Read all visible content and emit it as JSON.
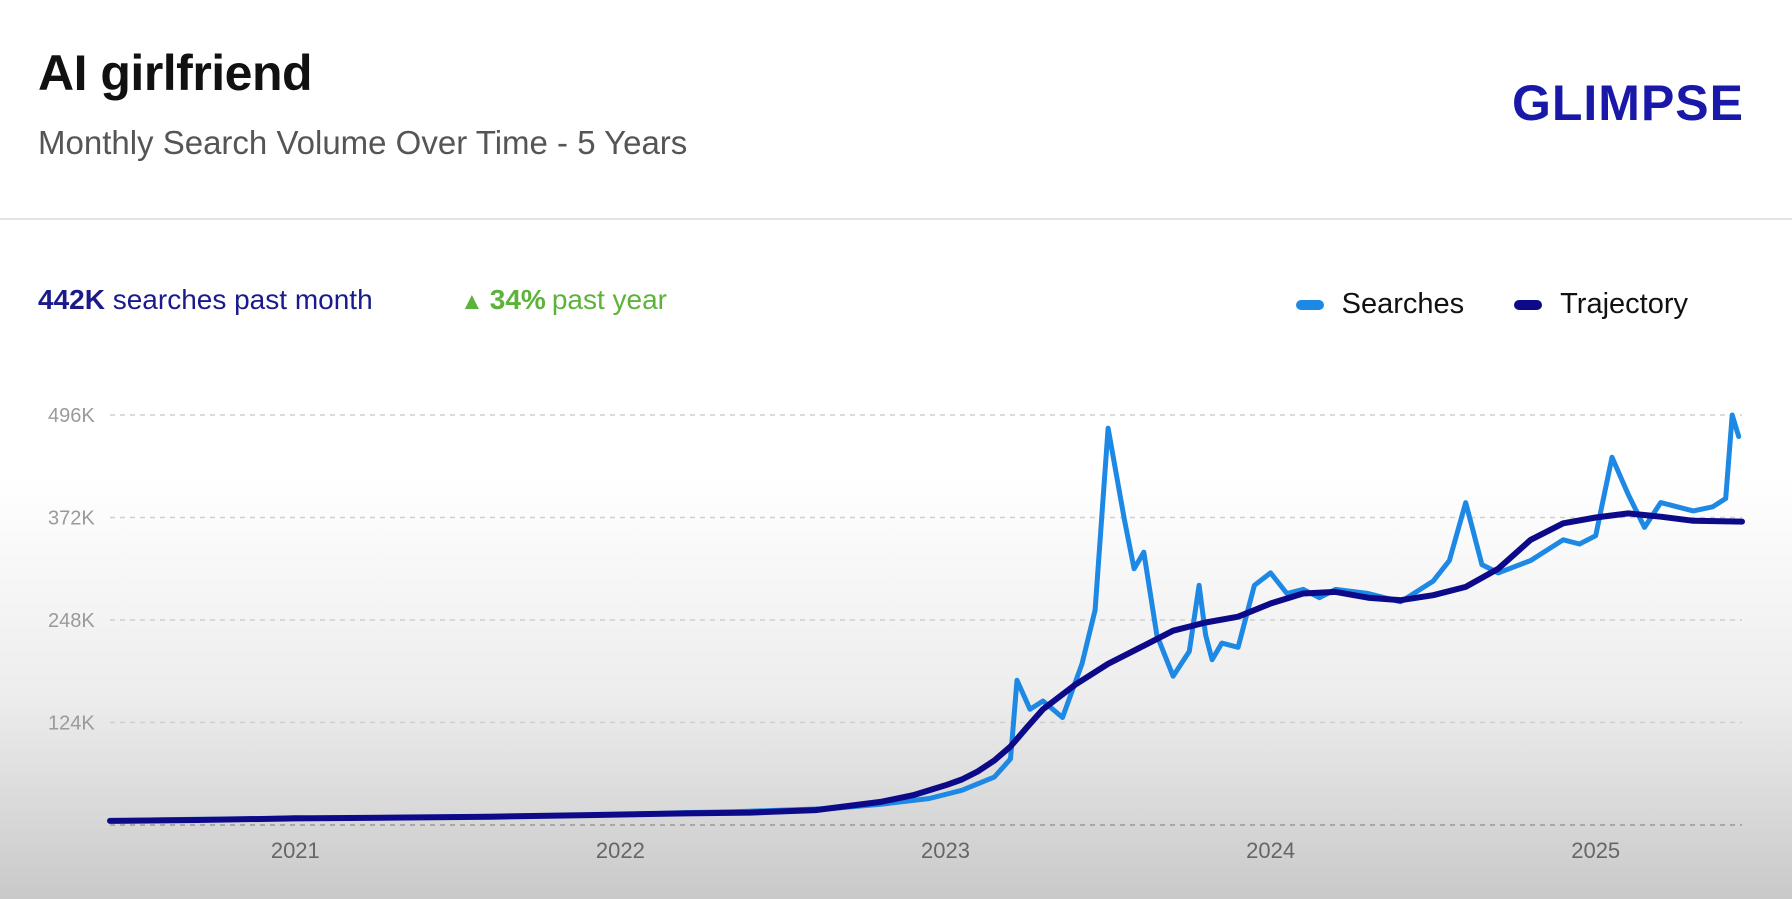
{
  "header": {
    "title": "AI girlfriend",
    "subtitle": "Monthly Search Volume Over Time - 5 Years",
    "logo": "GLIMPSE"
  },
  "stats": {
    "volume": "442K",
    "volume_label": "searches past month",
    "growth": "34%",
    "growth_label": "past year"
  },
  "colors": {
    "searches": "#1e88e5",
    "trajectory": "#0d0a8a",
    "growth": "#5db33a",
    "logo": "#1a18a8"
  },
  "chart_data": {
    "type": "line",
    "title": "AI girlfriend",
    "subtitle": "Monthly Search Volume Over Time - 5 Years",
    "ylim": [
      0,
      496
    ],
    "xlim": [
      2020.43,
      2025.45
    ],
    "yticks": [
      {
        "value": 496,
        "label": "496K"
      },
      {
        "value": 372,
        "label": "372K"
      },
      {
        "value": 248,
        "label": "248K"
      },
      {
        "value": 124,
        "label": "124K"
      }
    ],
    "xticks": [
      {
        "value": 2021,
        "label": "2021"
      },
      {
        "value": 2022,
        "label": "2022"
      },
      {
        "value": 2023,
        "label": "2023"
      },
      {
        "value": 2024,
        "label": "2024"
      },
      {
        "value": 2025,
        "label": "2025"
      }
    ],
    "grid": true,
    "legend_position": "top-right",
    "series": [
      {
        "name": "Searches",
        "x": [
          2020.43,
          2020.55,
          2020.7,
          2020.85,
          2021.0,
          2021.1,
          2021.3,
          2021.5,
          2021.7,
          2021.9,
          2022.05,
          2022.2,
          2022.35,
          2022.5,
          2022.65,
          2022.8,
          2022.95,
          2023.05,
          2023.15,
          2023.2,
          2023.22,
          2023.26,
          2023.3,
          2023.36,
          2023.42,
          2023.46,
          2023.5,
          2023.55,
          2023.58,
          2023.61,
          2023.65,
          2023.7,
          2023.75,
          2023.78,
          2023.8,
          2023.82,
          2023.85,
          2023.9,
          2023.95,
          2024.0,
          2024.05,
          2024.1,
          2024.15,
          2024.2,
          2024.3,
          2024.4,
          2024.5,
          2024.55,
          2024.6,
          2024.65,
          2024.7,
          2024.8,
          2024.9,
          2024.95,
          2025.0,
          2025.05,
          2025.1,
          2025.15,
          2025.2,
          2025.3,
          2025.36,
          2025.4,
          2025.42,
          2025.44
        ],
        "values": [
          5,
          6,
          7,
          7,
          9,
          8,
          9,
          10,
          11,
          12,
          13,
          15,
          16,
          18,
          20,
          25,
          32,
          42,
          58,
          80,
          175,
          140,
          150,
          130,
          195,
          260,
          480,
          370,
          310,
          330,
          230,
          180,
          210,
          290,
          230,
          200,
          220,
          215,
          290,
          305,
          280,
          285,
          275,
          285,
          280,
          270,
          295,
          320,
          390,
          315,
          305,
          320,
          345,
          340,
          350,
          445,
          400,
          360,
          390,
          380,
          385,
          395,
          496,
          470
        ]
      },
      {
        "name": "Trajectory",
        "x": [
          2020.43,
          2020.7,
          2021.0,
          2021.3,
          2021.6,
          2021.9,
          2022.2,
          2022.4,
          2022.6,
          2022.8,
          2022.9,
          2023.0,
          2023.05,
          2023.1,
          2023.15,
          2023.2,
          2023.25,
          2023.3,
          2023.4,
          2023.5,
          2023.6,
          2023.7,
          2023.8,
          2023.9,
          2024.0,
          2024.1,
          2024.2,
          2024.3,
          2024.4,
          2024.5,
          2024.6,
          2024.7,
          2024.8,
          2024.9,
          2025.0,
          2025.1,
          2025.2,
          2025.3,
          2025.45
        ],
        "values": [
          5,
          6,
          8,
          9,
          10,
          12,
          14,
          15,
          18,
          28,
          36,
          48,
          55,
          65,
          78,
          95,
          118,
          140,
          170,
          195,
          215,
          235,
          245,
          252,
          268,
          280,
          282,
          275,
          272,
          278,
          288,
          310,
          345,
          365,
          372,
          377,
          373,
          368,
          367
        ]
      }
    ]
  }
}
